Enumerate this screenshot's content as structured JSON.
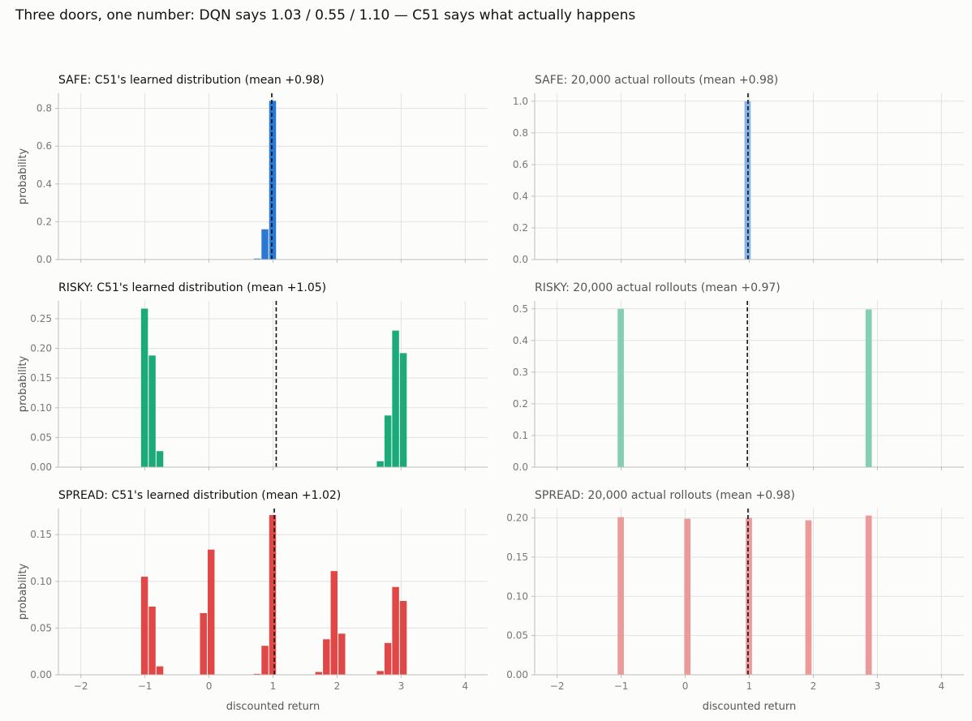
{
  "suptitle": "Three doors, one number: DQN says 1.03 / 0.55 / 1.10 — C51 says what actually happens",
  "chart_data": [
    {
      "type": "bar",
      "title": "SAFE: C51's learned distribution   (mean +0.98)",
      "title_color": "#111111",
      "color": "#2a77d4",
      "ylabel": "probability",
      "xlabel": "",
      "xlim": [
        -2.35,
        4.35
      ],
      "ylim": [
        0,
        0.88
      ],
      "xticks": [
        -2,
        -1,
        0,
        1,
        2,
        3,
        4
      ],
      "xtick_labels_shown": false,
      "yticks": [
        0,
        0.2,
        0.4,
        0.6,
        0.8
      ],
      "ytick_labels": [
        "0.0",
        "0.2",
        "0.4",
        "0.6",
        "0.8"
      ],
      "bar_width": 0.12,
      "x": [
        0.76,
        0.88,
        1.0
      ],
      "values": [
        0.005,
        0.16,
        0.84
      ],
      "mean": 0.98,
      "grid": true
    },
    {
      "type": "bar",
      "title": "SAFE: 20,000 actual rollouts   (mean +0.98)",
      "title_color": "#555555",
      "color": "#85b3e8",
      "ylabel": "",
      "xlabel": "",
      "xlim": [
        -2.35,
        4.35
      ],
      "ylim": [
        0,
        1.05
      ],
      "xticks": [
        -2,
        -1,
        0,
        1,
        2,
        3,
        4
      ],
      "xtick_labels_shown": false,
      "yticks": [
        0,
        0.2,
        0.4,
        0.6,
        0.8,
        1.0
      ],
      "ytick_labels": [
        "0.0",
        "0.2",
        "0.4",
        "0.6",
        "0.8",
        "1.0"
      ],
      "bar_width": 0.11,
      "x": [
        0.98
      ],
      "values": [
        1.0
      ],
      "mean": 0.98,
      "grid": true
    },
    {
      "type": "bar",
      "title": "RISKY: C51's learned distribution   (mean +1.05)",
      "title_color": "#111111",
      "color": "#1daa7a",
      "ylabel": "probability",
      "xlabel": "",
      "xlim": [
        -2.35,
        4.35
      ],
      "ylim": [
        0,
        0.28
      ],
      "xticks": [
        -2,
        -1,
        0,
        1,
        2,
        3,
        4
      ],
      "xtick_labels_shown": false,
      "yticks": [
        0,
        0.05,
        0.1,
        0.15,
        0.2,
        0.25
      ],
      "ytick_labels": [
        "0.00",
        "0.05",
        "0.10",
        "0.15",
        "0.20",
        "0.25"
      ],
      "bar_width": 0.12,
      "x": [
        -1.0,
        -0.88,
        -0.76,
        2.68,
        2.8,
        2.92,
        3.04
      ],
      "values": [
        0.267,
        0.188,
        0.027,
        0.01,
        0.087,
        0.23,
        0.192
      ],
      "mean": 1.05,
      "grid": true
    },
    {
      "type": "bar",
      "title": "RISKY: 20,000 actual rollouts   (mean +0.97)",
      "title_color": "#555555",
      "color": "#84cfb4",
      "ylabel": "",
      "xlabel": "",
      "xlim": [
        -2.35,
        4.35
      ],
      "ylim": [
        0,
        0.525
      ],
      "xticks": [
        -2,
        -1,
        0,
        1,
        2,
        3,
        4
      ],
      "xtick_labels_shown": false,
      "yticks": [
        0,
        0.1,
        0.2,
        0.3,
        0.4,
        0.5
      ],
      "ytick_labels": [
        "0.0",
        "0.1",
        "0.2",
        "0.3",
        "0.4",
        "0.5"
      ],
      "bar_width": 0.11,
      "x": [
        -1.0,
        2.87
      ],
      "values": [
        0.5,
        0.498
      ],
      "mean": 0.97,
      "grid": true
    },
    {
      "type": "bar",
      "title": "SPREAD: C51's learned distribution   (mean +1.02)",
      "title_color": "#111111",
      "color": "#e04848",
      "ylabel": "probability",
      "xlabel": "discounted return",
      "xlim": [
        -2.35,
        4.35
      ],
      "ylim": [
        0,
        0.178
      ],
      "xticks": [
        -2,
        -1,
        0,
        1,
        2,
        3,
        4
      ],
      "xtick_labels_shown": true,
      "xtick_labels": [
        "−2",
        "−1",
        "0",
        "1",
        "2",
        "3",
        "4"
      ],
      "yticks": [
        0,
        0.05,
        0.1,
        0.15
      ],
      "ytick_labels": [
        "0.00",
        "0.05",
        "0.10",
        "0.15"
      ],
      "bar_width": 0.12,
      "x": [
        -1.0,
        -0.88,
        -0.76,
        -0.08,
        0.04,
        0.76,
        0.88,
        1.0,
        1.72,
        1.84,
        1.96,
        2.08,
        2.68,
        2.8,
        2.92,
        3.04
      ],
      "values": [
        0.105,
        0.073,
        0.009,
        0.066,
        0.134,
        0.001,
        0.031,
        0.171,
        0.003,
        0.038,
        0.111,
        0.044,
        0.004,
        0.034,
        0.094,
        0.079
      ],
      "mean": 1.02,
      "grid": true
    },
    {
      "type": "bar",
      "title": "SPREAD: 20,000 actual rollouts   (mean +0.98)",
      "title_color": "#555555",
      "color": "#eb9a99",
      "ylabel": "",
      "xlabel": "discounted return",
      "xlim": [
        -2.35,
        4.35
      ],
      "ylim": [
        0,
        0.212
      ],
      "xticks": [
        -2,
        -1,
        0,
        1,
        2,
        3,
        4
      ],
      "xtick_labels_shown": true,
      "xtick_labels": [
        "−2",
        "−1",
        "0",
        "1",
        "2",
        "3",
        "4"
      ],
      "yticks": [
        0,
        0.05,
        0.1,
        0.15,
        0.2
      ],
      "ytick_labels": [
        "0.00",
        "0.05",
        "0.10",
        "0.15",
        "0.20"
      ],
      "bar_width": 0.11,
      "x": [
        -1.0,
        0.04,
        1.0,
        1.93,
        2.87
      ],
      "values": [
        0.201,
        0.199,
        0.2,
        0.197,
        0.203
      ],
      "mean": 0.98,
      "grid": true
    }
  ]
}
